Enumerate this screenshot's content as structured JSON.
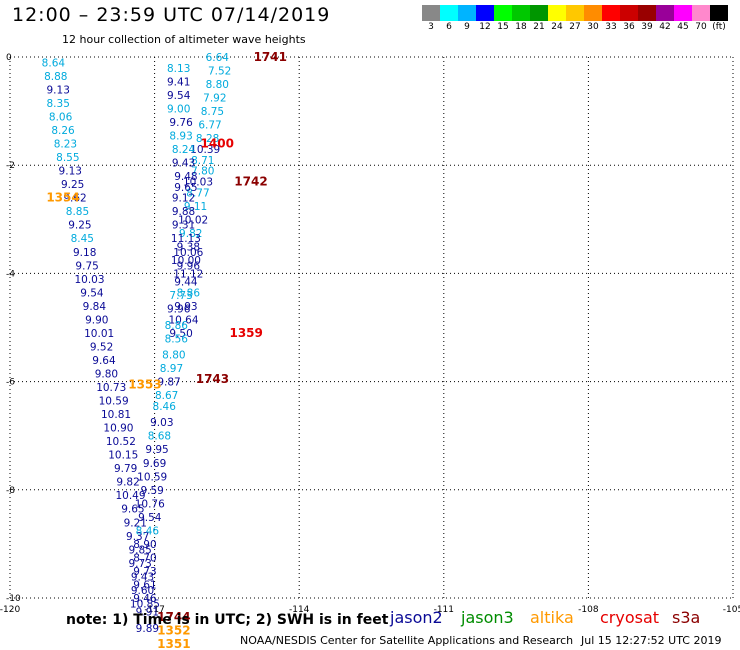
{
  "header": {
    "title": "12:00 – 23:59 UTC 07/14/2019",
    "subtitle": "12 hour collection of altimeter wave heights"
  },
  "scale": {
    "colors": [
      "#888888",
      "#00ffff",
      "#00b4ff",
      "#0000ff",
      "#00ff00",
      "#00c800",
      "#009600",
      "#ffff00",
      "#ffc800",
      "#ff8c00",
      "#ff0000",
      "#cc0000",
      "#990000",
      "#990099",
      "#ff00ff",
      "#ff88cc",
      "#000000"
    ],
    "labels": [
      "3",
      "6",
      "9",
      "12",
      "15",
      "18",
      "21",
      "24",
      "27",
      "30",
      "33",
      "36",
      "39",
      "42",
      "45",
      "70",
      "(ft)"
    ]
  },
  "axes": {
    "x_ticks": [
      "-120",
      "-117",
      "-114",
      "-111",
      "-108",
      "-105"
    ],
    "y_ticks": [
      "0",
      "-2",
      "-4",
      "-6",
      "-8",
      "-10"
    ]
  },
  "colors": {
    "jason2": "#0a0a96",
    "jason3": "#008c00",
    "altika": "#ff9900",
    "cryosat": "#e60000",
    "s3a": "#8b0000",
    "cyan_value": "#00aadd",
    "blue_value": "#0a0a96"
  },
  "times": [
    {
      "lon": -114.6,
      "lat": 0.0,
      "label": "1741",
      "color": "s3a"
    },
    {
      "lon": -115.7,
      "lat": -1.6,
      "label": "1400",
      "color": "cryosat"
    },
    {
      "lon": -115.0,
      "lat": -2.3,
      "label": "1742",
      "color": "s3a"
    },
    {
      "lon": -118.9,
      "lat": -2.6,
      "label": "1354",
      "color": "altika"
    },
    {
      "lon": -115.1,
      "lat": -5.1,
      "label": "1359",
      "color": "cryosat"
    },
    {
      "lon": -115.8,
      "lat": -5.95,
      "label": "1743",
      "color": "s3a"
    },
    {
      "lon": -117.2,
      "lat": -6.05,
      "label": "1353",
      "color": "altika"
    },
    {
      "lon": -116.6,
      "lat": -10.35,
      "label": "1744",
      "color": "s3a"
    },
    {
      "lon": -116.6,
      "lat": -10.6,
      "label": "1352",
      "color": "altika"
    },
    {
      "lon": -116.6,
      "lat": -10.85,
      "label": "1351",
      "color": "altika"
    }
  ],
  "values": [
    {
      "lon": -119.1,
      "lat": -0.1,
      "v": "8.64",
      "c": "cyan_value"
    },
    {
      "lon": -119.05,
      "lat": -0.35,
      "v": "8.88",
      "c": "cyan_value"
    },
    {
      "lon": -119.0,
      "lat": -0.6,
      "v": "9.13",
      "c": "blue_value"
    },
    {
      "lon": -119.0,
      "lat": -0.85,
      "v": "8.35",
      "c": "cyan_value"
    },
    {
      "lon": -118.95,
      "lat": -1.1,
      "v": "8.06",
      "c": "cyan_value"
    },
    {
      "lon": -118.9,
      "lat": -1.35,
      "v": "8.26",
      "c": "cyan_value"
    },
    {
      "lon": -118.85,
      "lat": -1.6,
      "v": "8.23",
      "c": "cyan_value"
    },
    {
      "lon": -118.8,
      "lat": -1.85,
      "v": "8.55",
      "c": "cyan_value"
    },
    {
      "lon": -118.75,
      "lat": -2.1,
      "v": "9.13",
      "c": "blue_value"
    },
    {
      "lon": -118.7,
      "lat": -2.35,
      "v": "9.25",
      "c": "blue_value"
    },
    {
      "lon": -118.65,
      "lat": -2.6,
      "v": "9.62",
      "c": "blue_value"
    },
    {
      "lon": -118.6,
      "lat": -2.85,
      "v": "8.85",
      "c": "cyan_value"
    },
    {
      "lon": -118.55,
      "lat": -3.1,
      "v": "9.25",
      "c": "blue_value"
    },
    {
      "lon": -118.5,
      "lat": -3.35,
      "v": "8.45",
      "c": "cyan_value"
    },
    {
      "lon": -118.45,
      "lat": -3.6,
      "v": "9.18",
      "c": "blue_value"
    },
    {
      "lon": -118.4,
      "lat": -3.85,
      "v": "9.75",
      "c": "blue_value"
    },
    {
      "lon": -118.35,
      "lat": -4.1,
      "v": "10.03",
      "c": "blue_value"
    },
    {
      "lon": -118.3,
      "lat": -4.35,
      "v": "9.54",
      "c": "blue_value"
    },
    {
      "lon": -118.25,
      "lat": -4.6,
      "v": "9.84",
      "c": "blue_value"
    },
    {
      "lon": -118.2,
      "lat": -4.85,
      "v": "9.90",
      "c": "blue_value"
    },
    {
      "lon": -118.15,
      "lat": -5.1,
      "v": "10.01",
      "c": "blue_value"
    },
    {
      "lon": -118.1,
      "lat": -5.35,
      "v": "9.52",
      "c": "blue_value"
    },
    {
      "lon": -118.05,
      "lat": -5.6,
      "v": "9.64",
      "c": "blue_value"
    },
    {
      "lon": -118.0,
      "lat": -5.85,
      "v": "9.80",
      "c": "blue_value"
    },
    {
      "lon": -117.9,
      "lat": -6.1,
      "v": "10.73",
      "c": "blue_value"
    },
    {
      "lon": -117.85,
      "lat": -6.35,
      "v": "10.59",
      "c": "blue_value"
    },
    {
      "lon": -117.8,
      "lat": -6.6,
      "v": "10.81",
      "c": "blue_value"
    },
    {
      "lon": -117.75,
      "lat": -6.85,
      "v": "10.90",
      "c": "blue_value"
    },
    {
      "lon": -117.7,
      "lat": -7.1,
      "v": "10.52",
      "c": "blue_value"
    },
    {
      "lon": -117.65,
      "lat": -7.35,
      "v": "10.15",
      "c": "blue_value"
    },
    {
      "lon": -117.6,
      "lat": -7.6,
      "v": "9.79",
      "c": "blue_value"
    },
    {
      "lon": -117.55,
      "lat": -7.85,
      "v": "9.82",
      "c": "blue_value"
    },
    {
      "lon": -117.5,
      "lat": -8.1,
      "v": "10.49",
      "c": "blue_value"
    },
    {
      "lon": -117.45,
      "lat": -8.35,
      "v": "9.65",
      "c": "blue_value"
    },
    {
      "lon": -117.4,
      "lat": -8.6,
      "v": "9.21",
      "c": "blue_value"
    },
    {
      "lon": -117.35,
      "lat": -8.85,
      "v": "9.37",
      "c": "blue_value"
    },
    {
      "lon": -117.3,
      "lat": -9.1,
      "v": "9.85",
      "c": "blue_value"
    },
    {
      "lon": -117.3,
      "lat": -9.35,
      "v": "9.73",
      "c": "blue_value"
    },
    {
      "lon": -117.25,
      "lat": -9.6,
      "v": "9.43",
      "c": "blue_value"
    },
    {
      "lon": -117.25,
      "lat": -9.85,
      "v": "9.60",
      "c": "blue_value"
    },
    {
      "lon": -117.2,
      "lat": -10.1,
      "v": "10.85",
      "c": "blue_value"
    },
    {
      "lon": -115.7,
      "lat": 0.0,
      "v": "6.64",
      "c": "cyan_value"
    },
    {
      "lon": -115.65,
      "lat": -0.25,
      "v": "7.52",
      "c": "cyan_value"
    },
    {
      "lon": -115.7,
      "lat": -0.5,
      "v": "8.80",
      "c": "cyan_value"
    },
    {
      "lon": -115.75,
      "lat": -0.75,
      "v": "7.92",
      "c": "cyan_value"
    },
    {
      "lon": -115.8,
      "lat": -1.0,
      "v": "8.75",
      "c": "cyan_value"
    },
    {
      "lon": -115.85,
      "lat": -1.25,
      "v": "6.77",
      "c": "cyan_value"
    },
    {
      "lon": -115.9,
      "lat": -1.5,
      "v": "8.28",
      "c": "cyan_value"
    },
    {
      "lon": -115.95,
      "lat": -1.7,
      "v": "10.39",
      "c": "blue_value"
    },
    {
      "lon": -116.0,
      "lat": -1.9,
      "v": "8.71",
      "c": "cyan_value"
    },
    {
      "lon": -116.0,
      "lat": -2.1,
      "v": "7.80",
      "c": "cyan_value"
    },
    {
      "lon": -116.1,
      "lat": -2.3,
      "v": "10.03",
      "c": "blue_value"
    },
    {
      "lon": -116.1,
      "lat": -2.5,
      "v": "8.77",
      "c": "cyan_value"
    },
    {
      "lon": -116.15,
      "lat": -2.75,
      "v": "9.11",
      "c": "cyan_value"
    },
    {
      "lon": -116.2,
      "lat": -3.0,
      "v": "10.02",
      "c": "blue_value"
    },
    {
      "lon": -116.25,
      "lat": -3.25,
      "v": "9.82",
      "c": "cyan_value"
    },
    {
      "lon": -116.3,
      "lat": -3.5,
      "v": "9.38",
      "c": "blue_value"
    },
    {
      "lon": -116.35,
      "lat": -3.75,
      "v": "10.00",
      "c": "blue_value"
    },
    {
      "lon": -116.3,
      "lat": -4.0,
      "v": "11.12",
      "c": "blue_value"
    },
    {
      "lon": -116.3,
      "lat": -4.35,
      "v": "8.86",
      "c": "cyan_value"
    },
    {
      "lon": -116.35,
      "lat": -4.6,
      "v": "9.93",
      "c": "blue_value"
    },
    {
      "lon": -116.4,
      "lat": -4.85,
      "v": "10.64",
      "c": "blue_value"
    },
    {
      "lon": -116.45,
      "lat": -5.1,
      "v": "9.50",
      "c": "blue_value"
    },
    {
      "lon": -116.5,
      "lat": -0.2,
      "v": "8.13",
      "c": "cyan_value"
    },
    {
      "lon": -116.5,
      "lat": -0.45,
      "v": "9.41",
      "c": "blue_value"
    },
    {
      "lon": -116.5,
      "lat": -0.7,
      "v": "9.54",
      "c": "blue_value"
    },
    {
      "lon": -116.5,
      "lat": -0.95,
      "v": "9.00",
      "c": "cyan_value"
    },
    {
      "lon": -116.45,
      "lat": -1.2,
      "v": "9.76",
      "c": "blue_value"
    },
    {
      "lon": -116.45,
      "lat": -1.45,
      "v": "8.93",
      "c": "cyan_value"
    },
    {
      "lon": -116.4,
      "lat": -1.7,
      "v": "8.24",
      "c": "cyan_value"
    },
    {
      "lon": -116.4,
      "lat": -1.95,
      "v": "9.43",
      "c": "blue_value"
    },
    {
      "lon": -116.35,
      "lat": -2.2,
      "v": "9.48",
      "c": "blue_value"
    },
    {
      "lon": -116.35,
      "lat": -2.4,
      "v": "9.65",
      "c": "blue_value"
    },
    {
      "lon": -116.4,
      "lat": -2.6,
      "v": "9.12",
      "c": "blue_value"
    },
    {
      "lon": -116.4,
      "lat": -2.85,
      "v": "9.88",
      "c": "blue_value"
    },
    {
      "lon": -116.4,
      "lat": -3.1,
      "v": "9.31",
      "c": "blue_value"
    },
    {
      "lon": -116.35,
      "lat": -3.35,
      "v": "11.13",
      "c": "blue_value"
    },
    {
      "lon": -116.3,
      "lat": -3.6,
      "v": "10.06",
      "c": "blue_value"
    },
    {
      "lon": -116.3,
      "lat": -3.85,
      "v": "9.96",
      "c": "blue_value"
    },
    {
      "lon": -116.35,
      "lat": -4.15,
      "v": "9.44",
      "c": "blue_value"
    },
    {
      "lon": -116.45,
      "lat": -4.4,
      "v": "7.73",
      "c": "cyan_value"
    },
    {
      "lon": -116.5,
      "lat": -4.65,
      "v": "9.96",
      "c": "blue_value"
    },
    {
      "lon": -116.55,
      "lat": -4.95,
      "v": "8.86",
      "c": "cyan_value"
    },
    {
      "lon": -116.55,
      "lat": -5.2,
      "v": "8.56",
      "c": "cyan_value"
    },
    {
      "lon": -116.6,
      "lat": -5.5,
      "v": "8.80",
      "c": "cyan_value"
    },
    {
      "lon": -116.65,
      "lat": -5.75,
      "v": "8.97",
      "c": "cyan_value"
    },
    {
      "lon": -116.7,
      "lat": -6.0,
      "v": "9.87",
      "c": "blue_value"
    },
    {
      "lon": -116.75,
      "lat": -6.25,
      "v": "8.67",
      "c": "cyan_value"
    },
    {
      "lon": -116.8,
      "lat": -6.45,
      "v": "8.46",
      "c": "cyan_value"
    },
    {
      "lon": -116.85,
      "lat": -6.75,
      "v": "9.03",
      "c": "blue_value"
    },
    {
      "lon": -116.9,
      "lat": -7.0,
      "v": "8.68",
      "c": "cyan_value"
    },
    {
      "lon": -116.95,
      "lat": -7.25,
      "v": "9.95",
      "c": "blue_value"
    },
    {
      "lon": -117.0,
      "lat": -7.5,
      "v": "9.69",
      "c": "blue_value"
    },
    {
      "lon": -117.05,
      "lat": -7.75,
      "v": "10.59",
      "c": "blue_value"
    },
    {
      "lon": -117.05,
      "lat": -8.0,
      "v": "9.59",
      "c": "blue_value"
    },
    {
      "lon": -117.1,
      "lat": -8.25,
      "v": "10.76",
      "c": "blue_value"
    },
    {
      "lon": -117.1,
      "lat": -8.5,
      "v": "9.54",
      "c": "blue_value"
    },
    {
      "lon": -117.15,
      "lat": -8.75,
      "v": "8.46",
      "c": "cyan_value"
    },
    {
      "lon": -117.2,
      "lat": -9.0,
      "v": "8.90",
      "c": "blue_value"
    },
    {
      "lon": -117.2,
      "lat": -9.25,
      "v": "8.70",
      "c": "blue_value"
    },
    {
      "lon": -117.2,
      "lat": -9.5,
      "v": "9.73",
      "c": "blue_value"
    },
    {
      "lon": -117.2,
      "lat": -9.75,
      "v": "9.61",
      "c": "blue_value"
    },
    {
      "lon": -117.2,
      "lat": -10.0,
      "v": "9.46",
      "c": "blue_value"
    },
    {
      "lon": -117.15,
      "lat": -10.25,
      "v": "9.91",
      "c": "blue_value"
    },
    {
      "lon": -117.15,
      "lat": -10.55,
      "v": "9.89",
      "c": "blue_value"
    }
  ],
  "footer": {
    "note": "note:  1) Time is in UTC; 2) SWH is in feet",
    "legend": [
      {
        "label": "jason2",
        "color": "jason2"
      },
      {
        "label": "jason3",
        "color": "jason3"
      },
      {
        "label": "altika",
        "color": "altika"
      },
      {
        "label": "cryosat",
        "color": "cryosat"
      },
      {
        "label": "s3a",
        "color": "s3a"
      }
    ],
    "credit": "NOAA/NESDIS Center for Satellite Applications and Research",
    "timestamp": "Jul 15 12:27:52 UTC 2019"
  }
}
